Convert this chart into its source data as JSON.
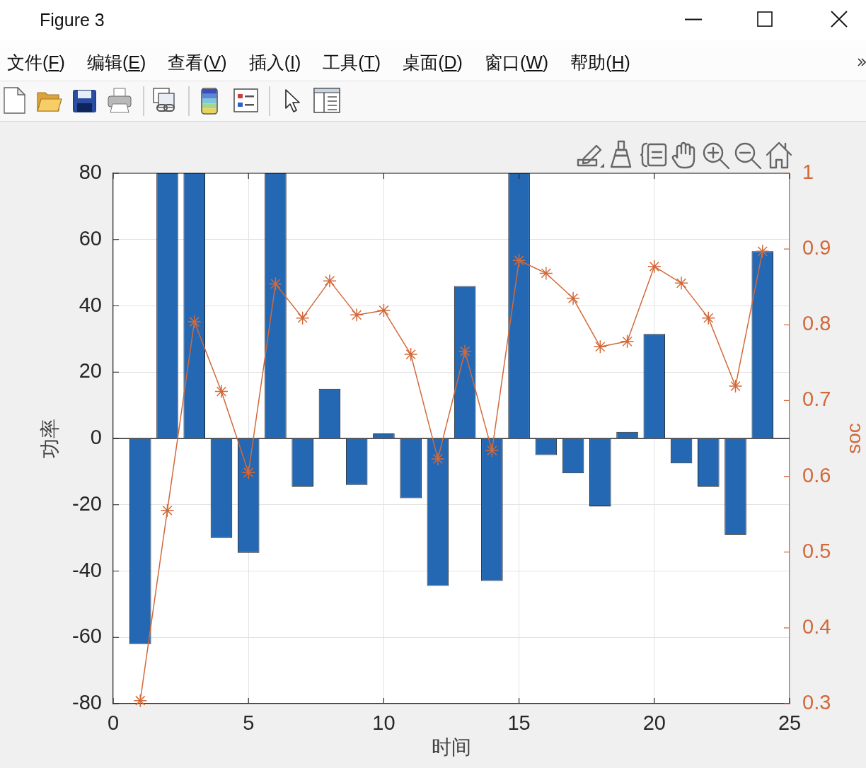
{
  "chart_data": {
    "type": "bar",
    "xlabel": "时间",
    "ylabel": "功率",
    "y2label": "soc",
    "x": [
      1,
      2,
      3,
      4,
      5,
      6,
      7,
      8,
      9,
      10,
      11,
      12,
      13,
      14,
      15,
      16,
      17,
      18,
      19,
      20,
      21,
      22,
      23,
      24
    ],
    "xlim": [
      0,
      25
    ],
    "xticks": [
      0,
      5,
      10,
      15,
      20,
      25
    ],
    "ylim": [
      -80,
      80
    ],
    "yticks": [
      -80,
      -60,
      -40,
      -20,
      0,
      20,
      40,
      60,
      80
    ],
    "y2lim": [
      0.3,
      1
    ],
    "y2ticks": [
      0.3,
      0.4,
      0.5,
      0.6,
      0.7,
      0.8,
      0.9,
      1
    ],
    "grid": true,
    "series": [
      {
        "color": "#2468b4",
        "values": [
          -62,
          80,
          80,
          -30,
          -34.5,
          80,
          -14.5,
          15,
          -14,
          1.5,
          -18,
          -44.5,
          46,
          -43,
          80,
          -5,
          -10.5,
          -20.5,
          2,
          31.5,
          -7.5,
          -14.5,
          -29,
          56.5
        ]
      },
      {
        "type": "line",
        "axis": "y2",
        "marker": "cross",
        "color": "#d2693a",
        "values": [
          0.304,
          0.555,
          0.804,
          0.712,
          0.605,
          0.854,
          0.809,
          0.858,
          0.813,
          0.819,
          0.761,
          0.623,
          0.765,
          0.634,
          0.885,
          0.868,
          0.835,
          0.771,
          0.778,
          0.877,
          0.855,
          0.809,
          0.719,
          0.897
        ]
      }
    ],
    "ref_lines": [
      {
        "axis": "y",
        "value": 0,
        "color": "#262626"
      }
    ],
    "annotations": [
      "Figure 3",
      "文件(F)",
      "编辑(E)",
      "查看(V)",
      "插入(I)",
      "工具(T)",
      "桌面(D)",
      "窗口(W)",
      "帮助(H)"
    ]
  }
}
